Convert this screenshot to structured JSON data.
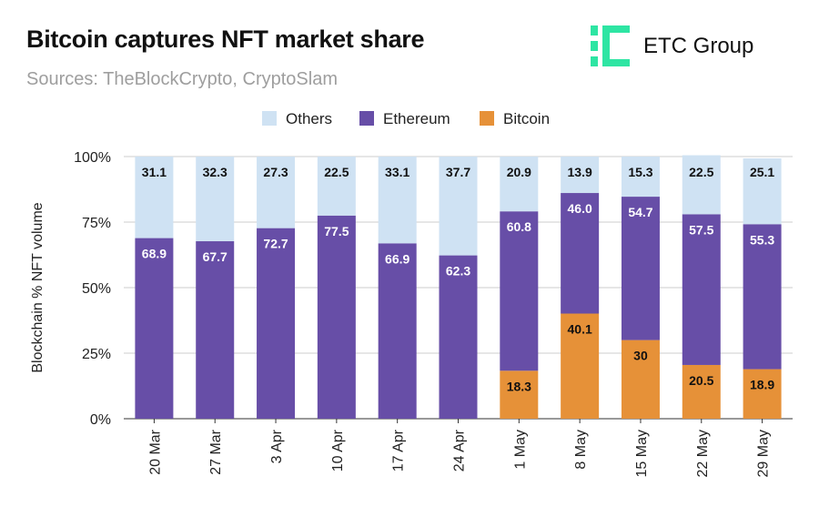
{
  "header": {
    "title": "Bitcoin captures NFT market share",
    "subtitle": "Sources: TheBlockCrypto, CryptoSlam"
  },
  "logo": {
    "text": "ETC Group",
    "color": "#2ee5a3"
  },
  "colors": {
    "others": "#cfe2f3",
    "ethereum": "#674ea7",
    "bitcoin": "#e69138"
  },
  "chart_data": {
    "type": "bar",
    "stacked": true,
    "title": "Bitcoin captures NFT market share",
    "xlabel": "",
    "ylabel": "Blockchain % NFT volume",
    "ylim": [
      0,
      100
    ],
    "yticks": [
      0,
      25,
      50,
      75,
      100
    ],
    "ytick_labels": [
      "0%",
      "25%",
      "50%",
      "75%",
      "100%"
    ],
    "categories": [
      "20 Mar",
      "27 Mar",
      "3 Apr",
      "10 Apr",
      "17 Apr",
      "24 Apr",
      "1 May",
      "8 May",
      "15 May",
      "22 May",
      "29 May"
    ],
    "legend": [
      "Others",
      "Ethereum",
      "Bitcoin"
    ],
    "legend_position": "top-center",
    "series": [
      {
        "name": "Bitcoin",
        "values": [
          0,
          0,
          0,
          0,
          0,
          0,
          18.3,
          40.1,
          30,
          20.5,
          18.9
        ],
        "labels": [
          "",
          "",
          "",
          "",
          "",
          "",
          "18.3",
          "40.1",
          "30",
          "20.5",
          "18.9"
        ]
      },
      {
        "name": "Ethereum",
        "values": [
          68.9,
          67.7,
          72.7,
          77.5,
          66.9,
          62.3,
          60.8,
          46.0,
          54.7,
          57.5,
          55.3
        ],
        "labels": [
          "68.9",
          "67.7",
          "72.7",
          "77.5",
          "66.9",
          "62.3",
          "60.8",
          "46.0",
          "54.7",
          "57.5",
          "55.3"
        ]
      },
      {
        "name": "Others",
        "values": [
          31.1,
          32.3,
          27.3,
          22.5,
          33.1,
          37.7,
          20.9,
          13.9,
          15.3,
          22.5,
          25.1
        ],
        "labels": [
          "31.1",
          "32.3",
          "27.3",
          "22.5",
          "33.1",
          "37.7",
          "20.9",
          "13.9",
          "15.3",
          "22.5",
          "25.1"
        ]
      }
    ]
  }
}
